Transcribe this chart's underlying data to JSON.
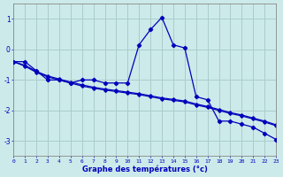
{
  "xlabel": "Graphe des températures (°c)",
  "background_color": "#cceaea",
  "grid_color": "#aacccc",
  "line_color": "#0000bb",
  "hours": [
    0,
    1,
    2,
    3,
    4,
    5,
    6,
    7,
    8,
    9,
    10,
    11,
    12,
    13,
    14,
    15,
    16,
    17,
    18,
    19,
    20,
    21,
    22,
    23
  ],
  "temp_main": [
    -0.4,
    -0.4,
    -0.7,
    -1.0,
    -1.0,
    -1.1,
    -1.0,
    -1.0,
    -1.1,
    -1.1,
    -1.1,
    0.15,
    0.65,
    1.05,
    0.15,
    0.05,
    -1.55,
    -1.65,
    -2.35,
    -2.35,
    -2.45,
    -2.55,
    -2.75,
    -2.95
  ],
  "temp_line2": [
    -0.4,
    -0.55,
    -0.75,
    -0.9,
    -1.0,
    -1.1,
    -1.2,
    -1.27,
    -1.33,
    -1.38,
    -1.43,
    -1.48,
    -1.55,
    -1.62,
    -1.67,
    -1.72,
    -1.82,
    -1.9,
    -2.0,
    -2.1,
    -2.18,
    -2.28,
    -2.38,
    -2.5
  ],
  "temp_line3": [
    -0.4,
    -0.52,
    -0.72,
    -0.87,
    -0.97,
    -1.07,
    -1.16,
    -1.24,
    -1.3,
    -1.35,
    -1.4,
    -1.45,
    -1.52,
    -1.59,
    -1.64,
    -1.69,
    -1.79,
    -1.87,
    -1.97,
    -2.07,
    -2.15,
    -2.25,
    -2.35,
    -2.47
  ],
  "ylim": [
    -3.5,
    1.5
  ],
  "yticks": [
    -3,
    -2,
    -1,
    0,
    1
  ],
  "xlim": [
    0,
    23
  ]
}
